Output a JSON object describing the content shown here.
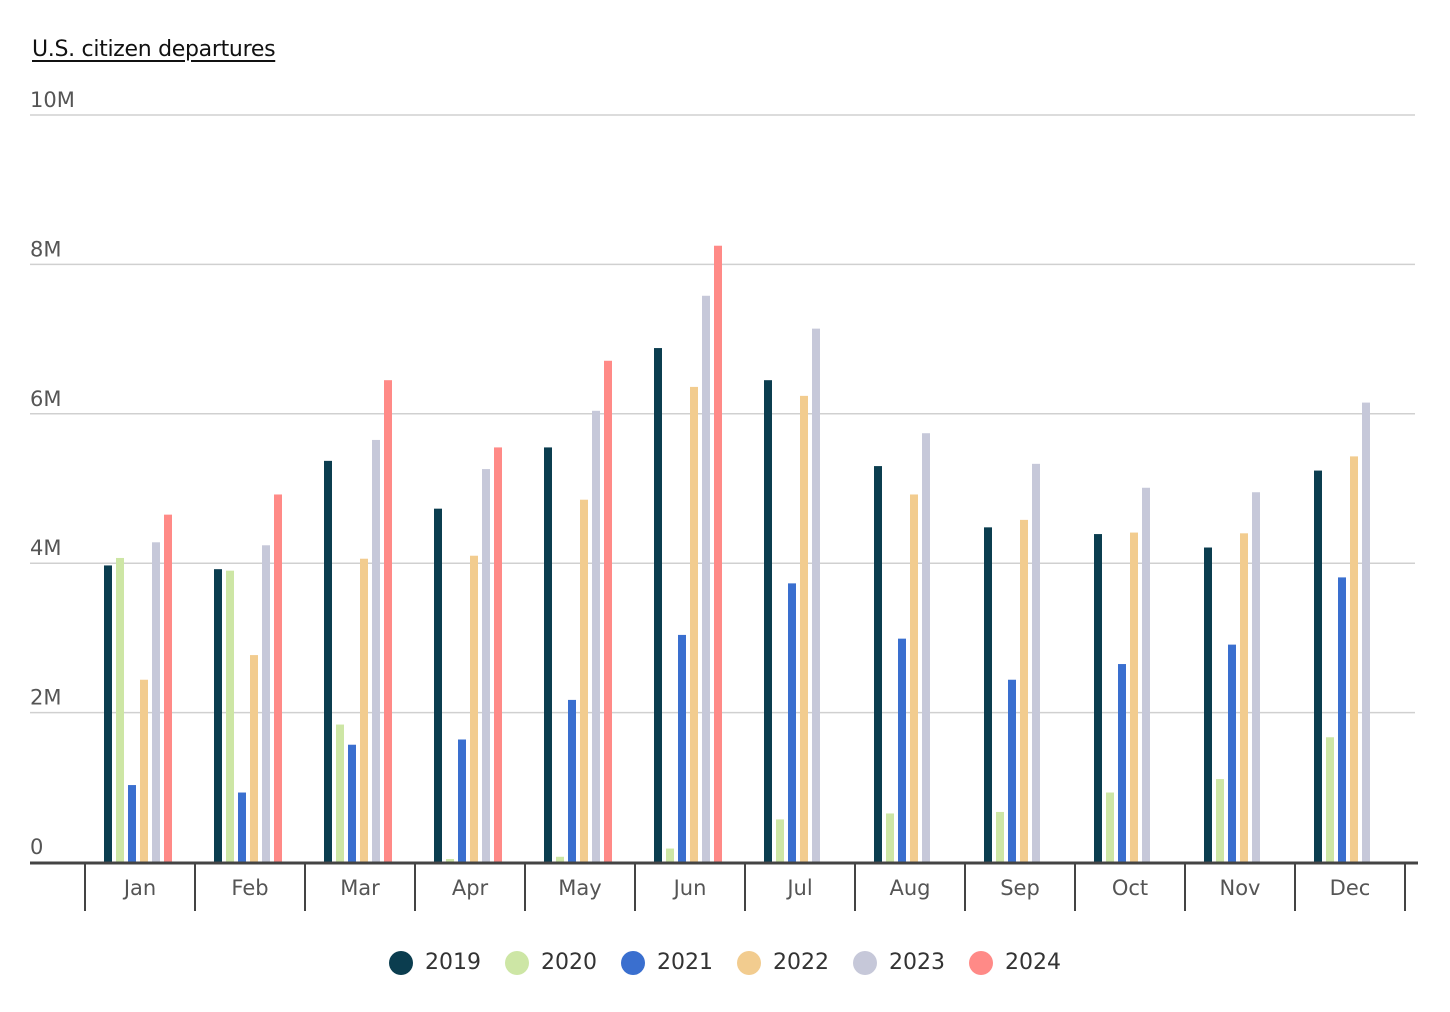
{
  "chart_data": {
    "type": "bar",
    "title": "U.S. citizen departures",
    "categories": [
      "Jan",
      "Feb",
      "Mar",
      "Apr",
      "May",
      "Jun",
      "Jul",
      "Aug",
      "Sep",
      "Oct",
      "Nov",
      "Dec"
    ],
    "y_ticks": [
      "0",
      "2M",
      "4M",
      "6M",
      "8M",
      "10M"
    ],
    "ylim": [
      0,
      10000000
    ],
    "grid": true,
    "legend_position": "bottom",
    "series": [
      {
        "name": "2019",
        "color": "#0b3d4f",
        "values": [
          3970000,
          3920000,
          5370000,
          4730000,
          5550000,
          6880000,
          6450000,
          5300000,
          4480000,
          4390000,
          4210000,
          5240000
        ]
      },
      {
        "name": "2020",
        "color": "#cde6a5",
        "values": [
          4070000,
          3900000,
          1840000,
          40000,
          70000,
          180000,
          570000,
          650000,
          670000,
          930000,
          1110000,
          1670000
        ]
      },
      {
        "name": "2021",
        "color": "#3a6fcf",
        "values": [
          1030000,
          930000,
          1570000,
          1640000,
          2170000,
          3040000,
          3730000,
          2990000,
          2440000,
          2650000,
          2910000,
          3810000
        ]
      },
      {
        "name": "2022",
        "color": "#f2cc8f",
        "values": [
          2440000,
          2770000,
          4060000,
          4100000,
          4850000,
          6360000,
          6240000,
          4920000,
          4580000,
          4410000,
          4400000,
          5430000
        ]
      },
      {
        "name": "2023",
        "color": "#c6c8d9",
        "values": [
          4280000,
          4240000,
          5650000,
          5260000,
          6040000,
          7580000,
          7140000,
          5740000,
          5330000,
          5010000,
          4950000,
          6150000
        ]
      },
      {
        "name": "2024",
        "color": "#ff8a87",
        "values": [
          4650000,
          4920000,
          6450000,
          5550000,
          6710000,
          8250000,
          null,
          null,
          null,
          null,
          null,
          null
        ]
      }
    ]
  }
}
